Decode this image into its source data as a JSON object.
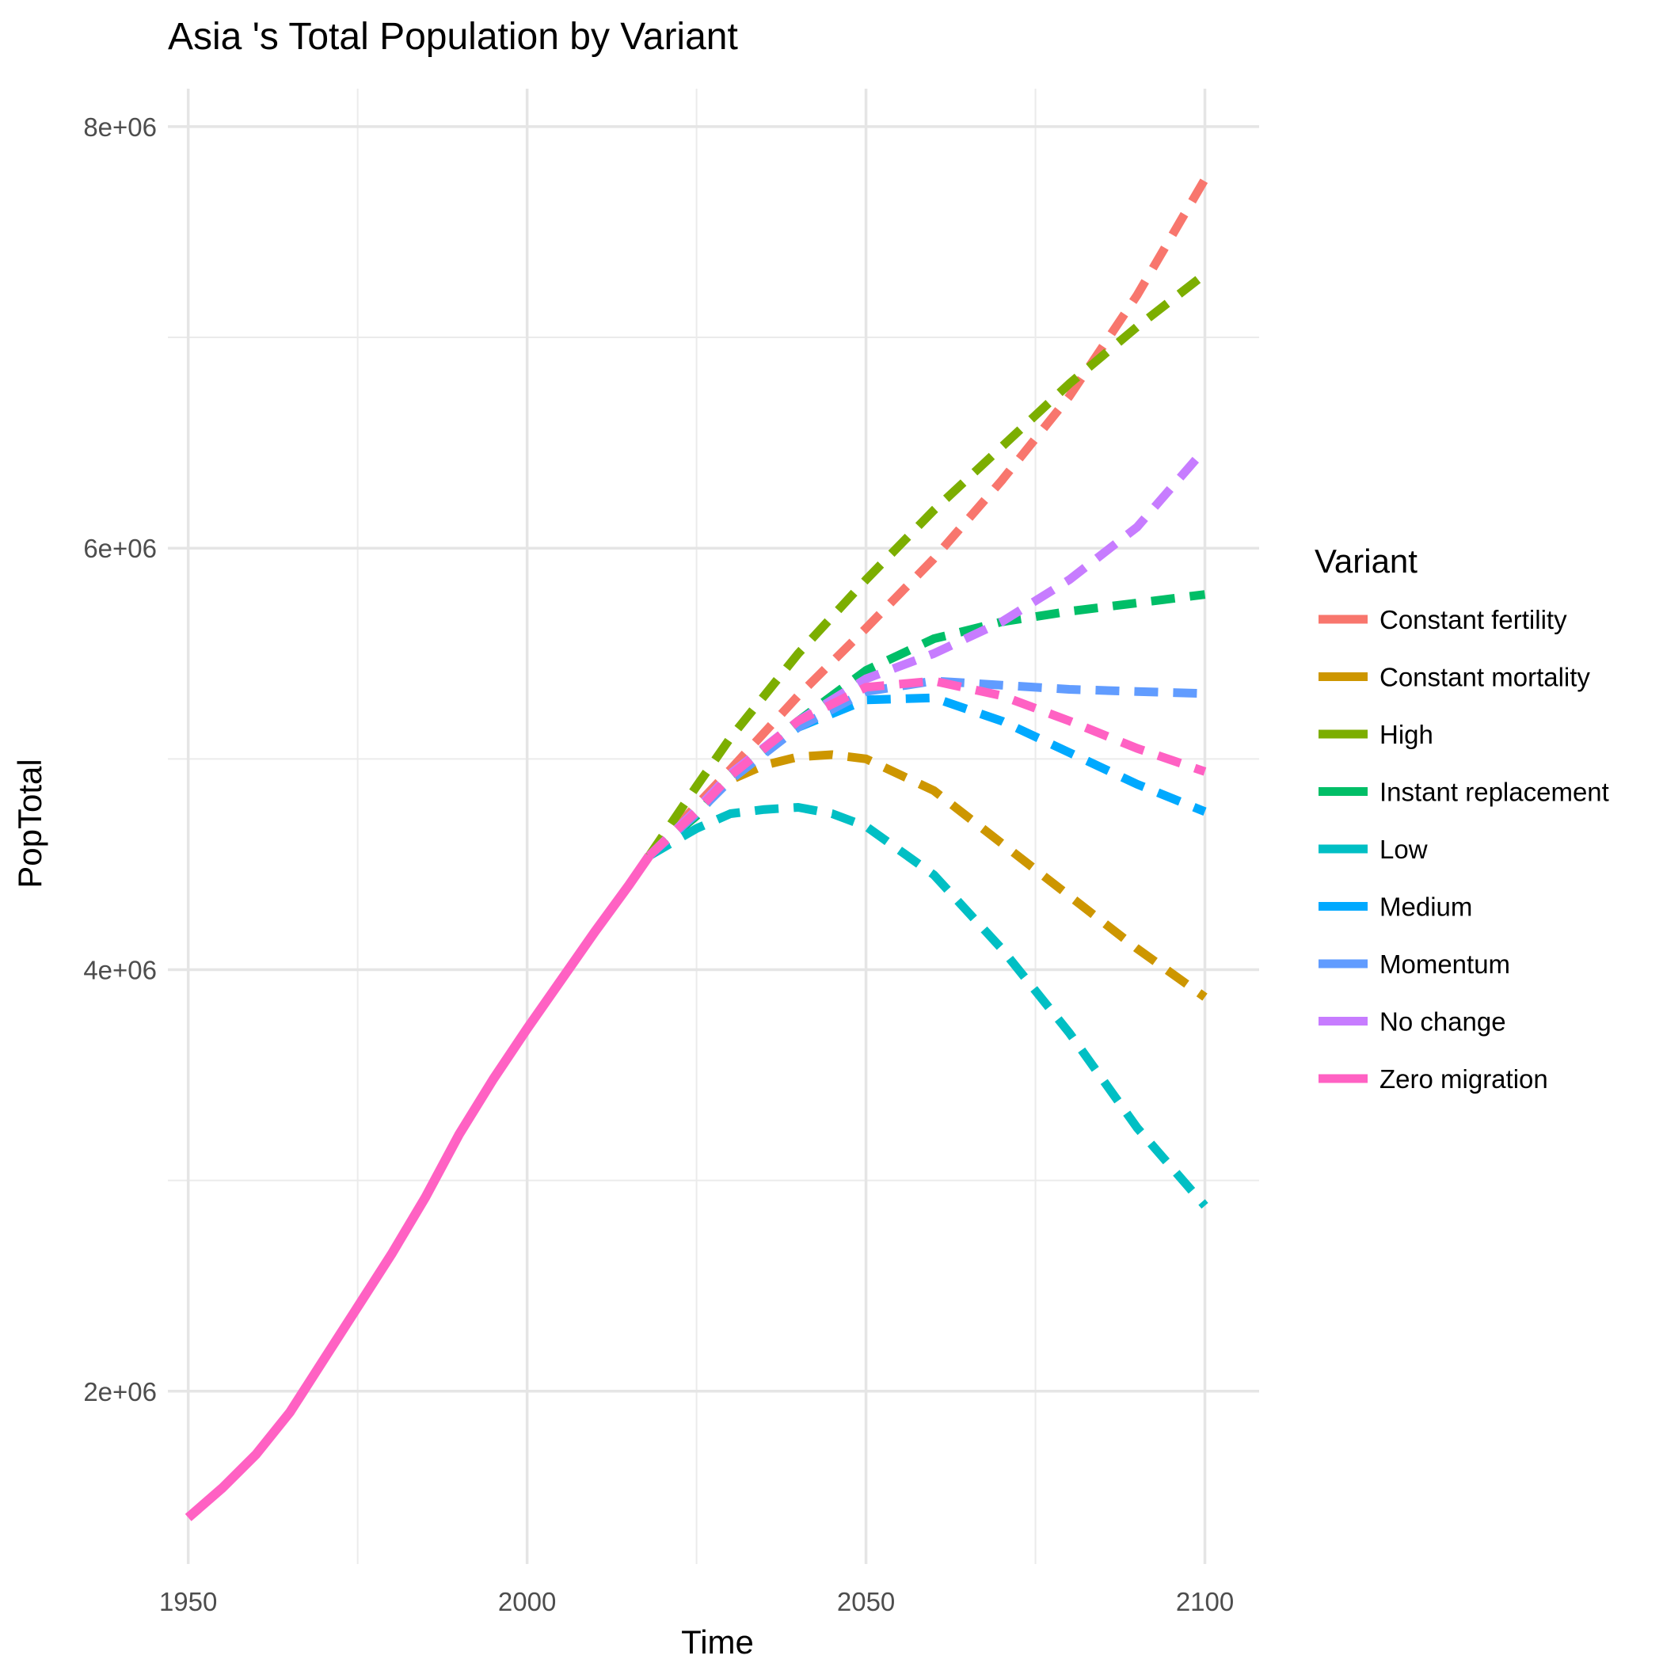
{
  "chart_data": {
    "type": "line",
    "title": "Asia 's Total Population by Variant",
    "xlabel": "Time",
    "ylabel": "PopTotal",
    "xlim": [
      1947,
      2108
    ],
    "ylim": [
      1180000,
      8180000
    ],
    "x_ticks": [
      1950,
      2000,
      2050,
      2100
    ],
    "x_tick_labels": [
      "1950",
      "2000",
      "2050",
      "2100"
    ],
    "y_ticks": [
      2000000,
      4000000,
      6000000,
      8000000
    ],
    "y_tick_labels": [
      "2e+06",
      "4e+06",
      "6e+06",
      "8e+06"
    ],
    "y_minor_ticks": [
      3000000,
      5000000,
      7000000
    ],
    "x_minor_ticks": [
      1975,
      2025,
      2075
    ],
    "grid": true,
    "legend_title": "Variant",
    "legend_position": "right",
    "historical": {
      "series": "Zero migration",
      "x": [
        1950,
        1955,
        1960,
        1965,
        1970,
        1975,
        1980,
        1985,
        1990,
        1995,
        2000,
        2005,
        2010,
        2015,
        2018
      ],
      "y": [
        1400000,
        1540000,
        1700000,
        1900000,
        2150000,
        2400000,
        2650000,
        2920000,
        3220000,
        3480000,
        3720000,
        3950000,
        4180000,
        4400000,
        4540000
      ]
    },
    "series": [
      {
        "name": "Constant fertility",
        "color": "#F8766D",
        "x": [
          2018,
          2025,
          2030,
          2040,
          2050,
          2060,
          2070,
          2080,
          2090,
          2100
        ],
        "y": [
          4540000,
          4780000,
          4950000,
          5300000,
          5620000,
          5950000,
          6320000,
          6720000,
          7200000,
          7750000
        ]
      },
      {
        "name": "Constant mortality",
        "color": "#CD9600",
        "x": [
          2018,
          2025,
          2030,
          2035,
          2040,
          2045,
          2050,
          2060,
          2070,
          2080,
          2090,
          2100
        ],
        "y": [
          4540000,
          4760000,
          4900000,
          4970000,
          5010000,
          5020000,
          5000000,
          4850000,
          4600000,
          4350000,
          4100000,
          3870000
        ]
      },
      {
        "name": "High",
        "color": "#7CAE00",
        "x": [
          2018,
          2025,
          2030,
          2040,
          2050,
          2060,
          2070,
          2080,
          2090,
          2100
        ],
        "y": [
          4540000,
          4870000,
          5100000,
          5500000,
          5850000,
          6180000,
          6480000,
          6780000,
          7050000,
          7300000
        ]
      },
      {
        "name": "Instant replacement",
        "color": "#00BE67",
        "x": [
          2018,
          2025,
          2030,
          2040,
          2050,
          2060,
          2070,
          2080,
          2090,
          2100
        ],
        "y": [
          4540000,
          4730000,
          4920000,
          5180000,
          5420000,
          5570000,
          5650000,
          5700000,
          5740000,
          5780000
        ]
      },
      {
        "name": "Low",
        "color": "#00BFC4",
        "x": [
          2018,
          2025,
          2030,
          2035,
          2040,
          2045,
          2050,
          2060,
          2070,
          2080,
          2090,
          2100
        ],
        "y": [
          4540000,
          4670000,
          4740000,
          4760000,
          4770000,
          4740000,
          4680000,
          4450000,
          4100000,
          3700000,
          3250000,
          2880000
        ]
      },
      {
        "name": "Medium",
        "color": "#00A9FF",
        "x": [
          2018,
          2025,
          2030,
          2040,
          2050,
          2060,
          2070,
          2080,
          2090,
          2100
        ],
        "y": [
          4540000,
          4750000,
          4920000,
          5150000,
          5280000,
          5290000,
          5180000,
          5030000,
          4880000,
          4750000
        ]
      },
      {
        "name": "Momentum",
        "color": "#619CFF",
        "x": [
          2018,
          2025,
          2030,
          2040,
          2050,
          2060,
          2070,
          2080,
          2090,
          2100
        ],
        "y": [
          4540000,
          4740000,
          4900000,
          5150000,
          5320000,
          5370000,
          5350000,
          5330000,
          5320000,
          5310000
        ]
      },
      {
        "name": "No change",
        "color": "#C77CFF",
        "x": [
          2018,
          2025,
          2030,
          2040,
          2050,
          2060,
          2070,
          2080,
          2090,
          2100
        ],
        "y": [
          4540000,
          4760000,
          4930000,
          5180000,
          5380000,
          5500000,
          5650000,
          5850000,
          6100000,
          6470000
        ]
      },
      {
        "name": "Zero migration",
        "color": "#FF61C3",
        "x": [
          2018,
          2025,
          2030,
          2040,
          2050,
          2060,
          2070,
          2080,
          2090,
          2100
        ],
        "y": [
          4540000,
          4750000,
          4920000,
          5180000,
          5340000,
          5370000,
          5300000,
          5180000,
          5050000,
          4940000
        ]
      }
    ]
  }
}
